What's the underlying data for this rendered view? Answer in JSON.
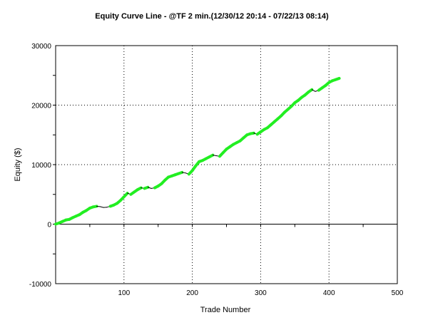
{
  "chart_data": {
    "type": "line",
    "title": "Equity Curve Line - @TF 2 min.(12/30/12 20:14 - 07/22/13 08:14)",
    "xlabel": "Trade Number",
    "ylabel": "Equity ($)",
    "xlim": [
      0,
      500
    ],
    "ylim": [
      -10000,
      30000
    ],
    "x_ticks": [
      100,
      200,
      300,
      400,
      500
    ],
    "y_ticks": [
      -10000,
      0,
      10000,
      20000,
      30000
    ],
    "grid": true,
    "legend": "none",
    "colors": {
      "new_high": "#22ee22",
      "drawdown": "#000000",
      "grid": "#000000",
      "axis": "#000000"
    },
    "series": [
      {
        "x": [
          0,
          5,
          10,
          15,
          20,
          25,
          30,
          35,
          40,
          45,
          50,
          55,
          60,
          65,
          70,
          75,
          80,
          85,
          90,
          95,
          100,
          105,
          110,
          115,
          120,
          125,
          130,
          135,
          140,
          145,
          150,
          155,
          160,
          165,
          170,
          175,
          180,
          185,
          190,
          195,
          200,
          205,
          210,
          215,
          220,
          225,
          230,
          235,
          240,
          245,
          250,
          255,
          260,
          265,
          270,
          275,
          280,
          285,
          290,
          295,
          300,
          305,
          310,
          315,
          320,
          325,
          330,
          335,
          340,
          345,
          350,
          355,
          360,
          365,
          370,
          375,
          380,
          385,
          390,
          395,
          400,
          405,
          410,
          415
        ],
        "values": [
          0,
          200,
          450,
          700,
          800,
          1100,
          1350,
          1600,
          2000,
          2300,
          2700,
          2900,
          3000,
          2950,
          2800,
          2850,
          3000,
          3200,
          3500,
          4000,
          4600,
          5200,
          5000,
          5400,
          5800,
          6100,
          6000,
          6200,
          6000,
          6100,
          6400,
          6800,
          7400,
          7900,
          8100,
          8300,
          8500,
          8700,
          8600,
          8400,
          9000,
          9800,
          10500,
          10700,
          11000,
          11300,
          11600,
          11500,
          11400,
          12000,
          12600,
          13000,
          13400,
          13700,
          14000,
          14500,
          15000,
          15200,
          15300,
          15100,
          15500,
          15900,
          16200,
          16700,
          17200,
          17700,
          18200,
          18800,
          19300,
          19800,
          20400,
          20800,
          21300,
          21700,
          22200,
          22600,
          22300,
          22500,
          22900,
          23300,
          23800,
          24100,
          24300,
          24500
        ],
        "new_high": [
          true,
          true,
          true,
          true,
          true,
          true,
          true,
          true,
          true,
          true,
          true,
          true,
          true,
          false,
          false,
          false,
          false,
          true,
          true,
          true,
          true,
          true,
          false,
          true,
          true,
          true,
          false,
          true,
          false,
          false,
          true,
          true,
          true,
          true,
          true,
          true,
          true,
          true,
          false,
          false,
          true,
          true,
          true,
          true,
          true,
          true,
          true,
          false,
          false,
          true,
          true,
          true,
          true,
          true,
          true,
          true,
          true,
          true,
          true,
          false,
          true,
          true,
          true,
          true,
          true,
          true,
          true,
          true,
          true,
          true,
          true,
          true,
          true,
          true,
          true,
          true,
          false,
          false,
          true,
          true,
          true,
          true,
          true,
          true
        ]
      }
    ]
  }
}
